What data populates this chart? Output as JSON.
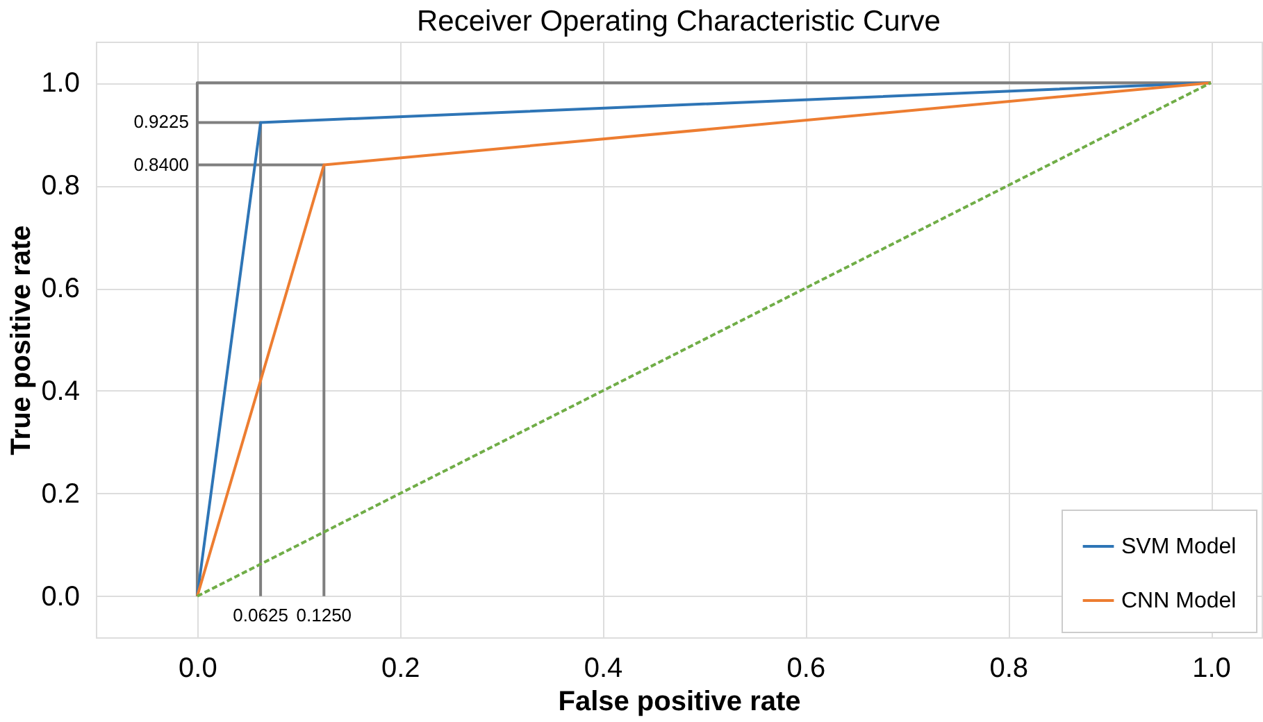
{
  "chart_data": {
    "type": "line",
    "title": "Receiver Operating Characteristic Curve",
    "xlabel": "False positive rate",
    "ylabel": "True positive rate",
    "xlim": [
      -0.1,
      1.05
    ],
    "ylim": [
      -0.08,
      1.08
    ],
    "xticks": [
      {
        "value": 0,
        "label": "0.0"
      },
      0.2,
      0.4,
      0.6,
      0.8,
      {
        "value": 1,
        "label": "1.0"
      }
    ],
    "yticks": [
      {
        "value": 0,
        "label": "0.0"
      },
      0.2,
      0.4,
      0.6,
      0.8,
      {
        "value": 1,
        "label": "1.0"
      }
    ],
    "grid": true,
    "legend": "bottom right",
    "marker": "none",
    "line_style": "solid",
    "series": [
      {
        "color": "#7f7f7f",
        "x": [
          0,
          0,
          1
        ],
        "values": [
          0,
          1,
          1
        ]
      },
      {
        "color": "#7f7f7f",
        "x": [
          0,
          0.0625,
          0.0625
        ],
        "values": [
          0.9225,
          0.9225,
          0
        ]
      },
      {
        "color": "#7f7f7f",
        "x": [
          0,
          0.125,
          0.125
        ],
        "values": [
          0.84,
          0.84,
          0
        ]
      },
      {
        "name": "SVM Model",
        "color": "#2e75b6",
        "x": [
          0,
          0.0625,
          1
        ],
        "values": [
          0,
          0.9225,
          1
        ]
      },
      {
        "name": "CNN Model",
        "color": "#ed7d31",
        "x": [
          0,
          0.125,
          1
        ],
        "values": [
          0,
          0.84,
          1
        ]
      },
      {
        "color": "#70ad47",
        "x": [
          0,
          1
        ],
        "values": [
          0,
          1
        ],
        "line_style": "dashed"
      }
    ],
    "annotations": [
      {
        "text": "0.9225",
        "x": 0,
        "y": 0.9225
      },
      {
        "text": "0.8400",
        "x": 0,
        "y": 0.84
      },
      {
        "text": "0.0625",
        "x": 0.0625,
        "y": 0
      },
      {
        "text": "0.1250",
        "x": 0.125,
        "y": 0
      }
    ]
  }
}
